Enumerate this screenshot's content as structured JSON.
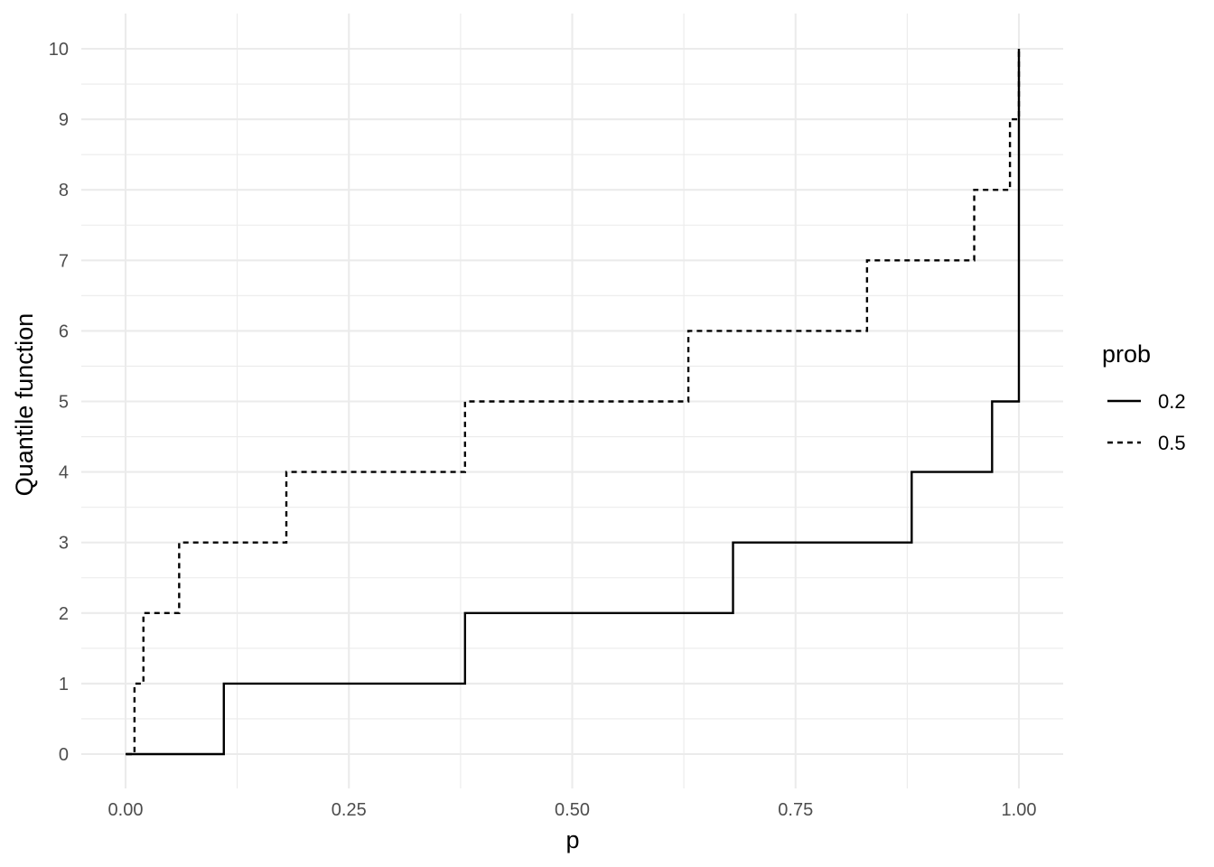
{
  "chart_data": {
    "type": "line",
    "step": true,
    "title": "",
    "xlabel": "p",
    "ylabel": "Quantile function",
    "xlim": [
      0,
      1
    ],
    "ylim": [
      0,
      10
    ],
    "x_ticks": [
      "0.00",
      "0.25",
      "0.50",
      "0.75",
      "1.00"
    ],
    "y_ticks": [
      "0",
      "1",
      "2",
      "3",
      "4",
      "5",
      "6",
      "7",
      "8",
      "9",
      "10"
    ],
    "grid": true,
    "legend": {
      "title": "prob",
      "placement": "right"
    },
    "line_color": "#000000",
    "series": [
      {
        "name": "0.2",
        "linetype": "solid",
        "x": [
          0.0,
          0.11,
          0.11,
          0.38,
          0.38,
          0.68,
          0.68,
          0.88,
          0.88,
          0.97,
          0.97,
          1.0,
          1.0
        ],
        "y": [
          0,
          0,
          1,
          1,
          2,
          2,
          3,
          3,
          4,
          4,
          5,
          5,
          10
        ]
      },
      {
        "name": "0.5",
        "linetype": "dashed",
        "x": [
          0.001,
          0.01,
          0.01,
          0.02,
          0.02,
          0.06,
          0.06,
          0.18,
          0.18,
          0.38,
          0.38,
          0.63,
          0.63,
          0.83,
          0.83,
          0.95,
          0.95,
          0.99,
          0.99,
          1.0,
          1.0
        ],
        "y": [
          0,
          0,
          1,
          1,
          2,
          2,
          3,
          3,
          4,
          4,
          5,
          5,
          6,
          6,
          7,
          7,
          8,
          8,
          9,
          9,
          10
        ]
      }
    ]
  }
}
